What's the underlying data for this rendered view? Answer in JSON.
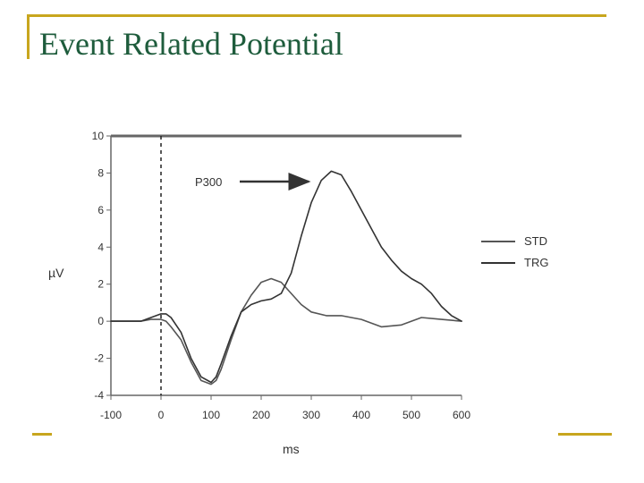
{
  "slide": {
    "title": "Event Related Potential",
    "accent_color": "#C8A61E",
    "title_color": "#1E5C3C"
  },
  "chart_data": {
    "type": "line",
    "xlabel": "ms",
    "ylabel": "µV",
    "xlim": [
      -100,
      600
    ],
    "ylim": [
      -4,
      10
    ],
    "xticks": [
      -100,
      0,
      100,
      200,
      300,
      400,
      500,
      600
    ],
    "yticks": [
      10,
      8,
      6,
      4,
      2,
      0,
      -2,
      -4
    ],
    "stimulus_onset_x": 0,
    "legend_position": "right",
    "annotation": {
      "text": "P300",
      "arrow": true,
      "target_x": 350,
      "target_y": 7.7
    },
    "series": [
      {
        "name": "STD",
        "color": "#555555",
        "x": [
          -100,
          -60,
          -40,
          -20,
          0,
          10,
          20,
          40,
          60,
          80,
          100,
          110,
          120,
          140,
          160,
          180,
          200,
          220,
          240,
          260,
          280,
          300,
          330,
          360,
          400,
          440,
          480,
          520,
          560,
          600
        ],
        "y": [
          0.0,
          0.0,
          0.0,
          0.1,
          0.1,
          0.0,
          -0.3,
          -1.0,
          -2.2,
          -3.2,
          -3.4,
          -3.2,
          -2.6,
          -1.0,
          0.5,
          1.4,
          2.1,
          2.3,
          2.1,
          1.5,
          0.9,
          0.5,
          0.3,
          0.3,
          0.1,
          -0.3,
          -0.2,
          0.2,
          0.1,
          0.0
        ]
      },
      {
        "name": "TRG",
        "color": "#333333",
        "x": [
          -100,
          -60,
          -40,
          -20,
          0,
          10,
          20,
          40,
          60,
          80,
          100,
          110,
          120,
          140,
          160,
          180,
          200,
          220,
          240,
          260,
          280,
          300,
          320,
          340,
          360,
          380,
          400,
          420,
          440,
          460,
          480,
          500,
          520,
          540,
          560,
          580,
          600
        ],
        "y": [
          0.0,
          0.0,
          0.0,
          0.2,
          0.4,
          0.4,
          0.2,
          -0.6,
          -2.0,
          -3.0,
          -3.3,
          -3.0,
          -2.3,
          -0.8,
          0.5,
          0.9,
          1.1,
          1.2,
          1.5,
          2.6,
          4.6,
          6.4,
          7.6,
          8.1,
          7.9,
          7.0,
          6.0,
          5.0,
          4.0,
          3.3,
          2.7,
          2.3,
          2.0,
          1.5,
          0.8,
          0.3,
          0.0
        ]
      }
    ]
  }
}
